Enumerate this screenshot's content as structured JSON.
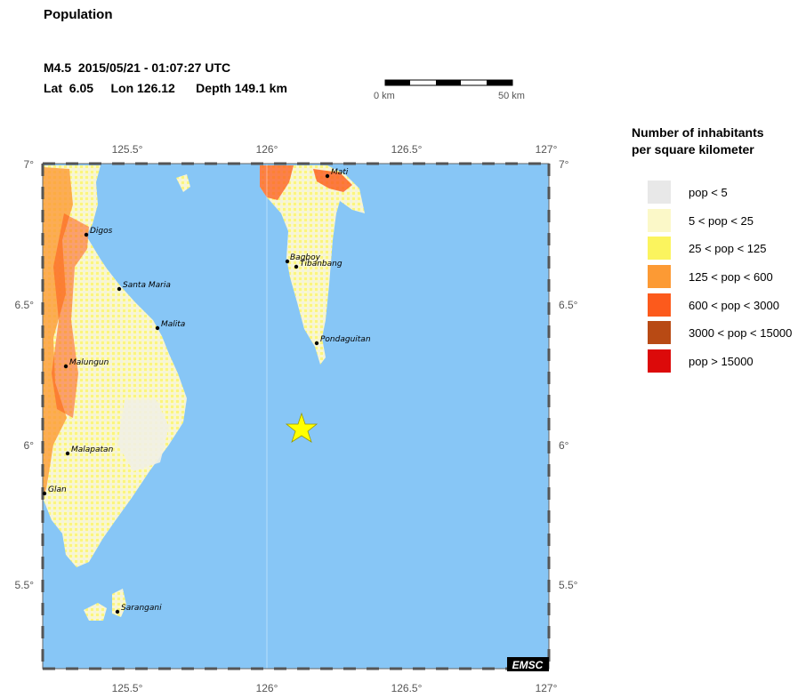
{
  "header": {
    "title": "Population",
    "quake_line1": "M4.5  2015/05/21 - 01:07:27 UTC",
    "quake_line2": "Lat  6.05     Lon 126.12      Depth 149.1 km"
  },
  "scale": {
    "left_label": "0 km",
    "right_label": "50 km"
  },
  "map": {
    "top_lon_labels": [
      "125.5°",
      "126°",
      "126.5°",
      "127°"
    ],
    "bottom_lon_labels": [
      "125.5°",
      "126°",
      "126.5°",
      "127°"
    ],
    "left_lat_labels": [
      "7°",
      "6.5°",
      "6°",
      "5.5°"
    ],
    "right_lat_labels": [
      "7°",
      "6.5°",
      "6°",
      "5.5°"
    ],
    "cities": [
      "Mati",
      "Digos",
      "Santa Maria",
      "Malita",
      "Malungun",
      "Malapatan",
      "Glan",
      "Sarangani",
      "Bagboy",
      "Tibanbang",
      "Pondaguitan"
    ],
    "watermark": "EMSC",
    "sea_color": "#87c6f6",
    "epicenter_color": "#ffff00"
  },
  "legend": {
    "title_line1": "Number of inhabitants",
    "title_line2": "per square kilometer",
    "items": [
      {
        "label": "pop < 5",
        "color": "#e8e8e8"
      },
      {
        "label": "5 < pop < 25",
        "color": "#fbf8c8"
      },
      {
        "label": "25 < pop < 125",
        "color": "#fbf45e"
      },
      {
        "label": "125 < pop < 600",
        "color": "#fc9a34"
      },
      {
        "label": "600 < pop < 3000",
        "color": "#fc5a1c"
      },
      {
        "label": "3000 < pop < 15000",
        "color": "#b84a14"
      },
      {
        "label": "pop > 15000",
        "color": "#dc0a0a"
      }
    ]
  }
}
